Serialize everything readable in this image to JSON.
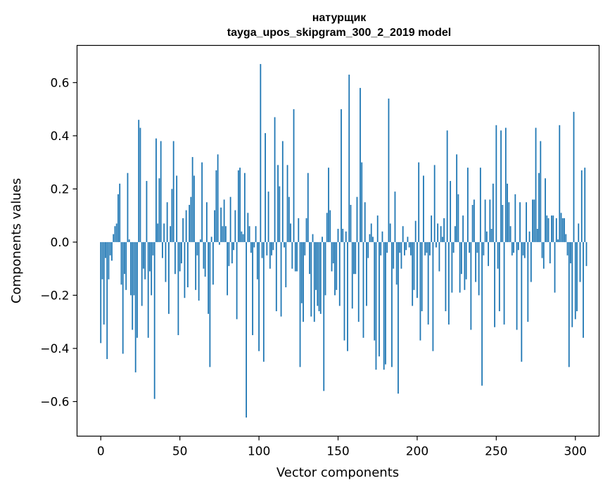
{
  "chart_data": {
    "type": "bar",
    "title_lines": [
      "натурщик",
      "tayga_upos_skipgram_300_2_2019 model"
    ],
    "xlabel": "Vector components",
    "ylabel": "Components values",
    "xlim": [
      -15,
      315
    ],
    "ylim": [
      -0.73,
      0.74
    ],
    "xticks": [
      0,
      50,
      100,
      150,
      200,
      250,
      300
    ],
    "xtick_labels": [
      "0",
      "50",
      "100",
      "150",
      "200",
      "250",
      "300"
    ],
    "yticks": [
      -0.6,
      -0.4,
      -0.2,
      0.0,
      0.2,
      0.4,
      0.6
    ],
    "ytick_labels": [
      "−0.6",
      "−0.4",
      "−0.2",
      "0.0",
      "0.2",
      "0.4",
      "0.6"
    ],
    "bar_color": "#1f77b4",
    "values": [
      -0.38,
      -0.14,
      -0.31,
      -0.06,
      -0.44,
      -0.14,
      -0.05,
      -0.07,
      0.03,
      0.06,
      0.07,
      0.18,
      0.22,
      -0.16,
      -0.42,
      -0.12,
      -0.18,
      0.26,
      0.01,
      -0.2,
      -0.33,
      -0.2,
      -0.49,
      -0.36,
      0.46,
      0.43,
      -0.24,
      -0.1,
      -0.14,
      0.23,
      -0.36,
      -0.11,
      -0.2,
      -0.05,
      -0.59,
      0.39,
      0.07,
      0.24,
      0.38,
      -0.06,
      0.07,
      -0.15,
      0.15,
      -0.27,
      0.06,
      0.2,
      0.38,
      -0.12,
      0.25,
      -0.35,
      -0.11,
      -0.08,
      0.09,
      -0.21,
      0.12,
      -0.17,
      0.14,
      0.17,
      0.32,
      0.25,
      -0.18,
      -0.05,
      -0.22,
      0.01,
      0.3,
      -0.1,
      -0.13,
      0.15,
      -0.27,
      -0.47,
      0.02,
      -0.16,
      0.12,
      0.27,
      0.33,
      -0.01,
      0.13,
      0.06,
      0.16,
      0.06,
      -0.2,
      -0.09,
      0.17,
      -0.08,
      -0.03,
      0.12,
      -0.29,
      0.27,
      0.28,
      0.04,
      0.03,
      0.26,
      -0.66,
      0.11,
      0.06,
      -0.04,
      -0.35,
      -0.02,
      0.06,
      -0.14,
      -0.41,
      0.67,
      -0.06,
      -0.45,
      0.41,
      -0.05,
      0.19,
      -0.1,
      -0.05,
      -0.03,
      0.47,
      -0.26,
      0.29,
      0.21,
      -0.28,
      0.38,
      -0.02,
      -0.17,
      0.29,
      0.17,
      0.07,
      -0.1,
      0.5,
      -0.11,
      -0.11,
      0.09,
      -0.47,
      -0.23,
      -0.3,
      -0.05,
      0.09,
      0.26,
      -0.12,
      -0.28,
      0.03,
      -0.3,
      -0.18,
      -0.24,
      -0.26,
      -0.27,
      0.02,
      -0.56,
      -0.2,
      0.11,
      0.28,
      0.12,
      -0.11,
      -0.08,
      -0.2,
      -0.18,
      0.05,
      -0.24,
      0.5,
      0.05,
      -0.37,
      0.04,
      -0.41,
      0.63,
      0.14,
      -0.25,
      -0.12,
      -0.12,
      0.17,
      -0.3,
      0.58,
      0.3,
      -0.36,
      0.15,
      -0.24,
      -0.06,
      0.03,
      0.07,
      0.02,
      -0.37,
      -0.48,
      0.1,
      -0.43,
      -0.05,
      0.04,
      -0.48,
      -0.46,
      -0.04,
      0.54,
      0.07,
      -0.47,
      -0.1,
      0.19,
      -0.16,
      -0.57,
      -0.04,
      -0.1,
      0.06,
      -0.05,
      -0.03,
      0.02,
      -0.02,
      -0.05,
      -0.24,
      -0.18,
      0.08,
      -0.21,
      0.3,
      -0.37,
      -0.26,
      0.25,
      -0.05,
      -0.04,
      -0.31,
      -0.05,
      0.1,
      -0.41,
      0.29,
      -0.02,
      0.07,
      -0.11,
      0.06,
      0.02,
      0.09,
      -0.26,
      0.42,
      -0.31,
      0.23,
      -0.19,
      -0.04,
      0.06,
      0.33,
      0.18,
      -0.19,
      -0.12,
      0.1,
      -0.18,
      -0.14,
      0.28,
      -0.04,
      -0.33,
      0.14,
      0.16,
      -0.15,
      -0.04,
      -0.2,
      0.28,
      -0.54,
      -0.05,
      0.16,
      0.04,
      -0.09,
      0.16,
      0.05,
      0.22,
      -0.32,
      0.44,
      -0.1,
      -0.26,
      0.42,
      0.14,
      -0.31,
      0.43,
      0.22,
      0.15,
      0.06,
      -0.05,
      -0.04,
      0.18,
      -0.33,
      -0.03,
      0.15,
      -0.45,
      -0.05,
      -0.06,
      0.15,
      -0.3,
      0.04,
      -0.15,
      0.16,
      0.16,
      0.43,
      0.05,
      0.26,
      0.38,
      -0.06,
      -0.1,
      0.24,
      0.1,
      0.09,
      -0.08,
      0.1,
      0.1,
      -0.19,
      0.09,
      0.01,
      0.44,
      0.11,
      0.09,
      0.09,
      0.03,
      -0.05,
      -0.47,
      -0.08,
      -0.32,
      0.49,
      -0.29,
      -0.26,
      0.07,
      -0.15,
      0.27,
      -0.36,
      0.28,
      -0.09
    ]
  }
}
